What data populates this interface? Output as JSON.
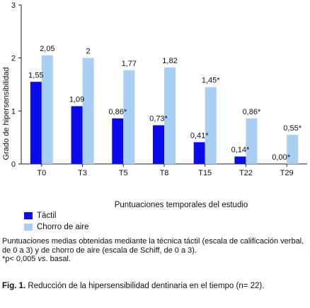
{
  "chart_data": {
    "type": "bar",
    "categories": [
      "T0",
      "T3",
      "T5",
      "T8",
      "T15",
      "T22",
      "T29"
    ],
    "series": [
      {
        "name": "Táctil",
        "color": "#0a0aec",
        "values": [
          1.55,
          1.09,
          0.86,
          0.73,
          0.41,
          0.14,
          0.0
        ],
        "labels": [
          "1,55",
          "1,09",
          "0,86*",
          "0,73*",
          "0,41*",
          "0,14*",
          "0,00*"
        ]
      },
      {
        "name": "Chorro de aire",
        "color": "#a9cff5",
        "values": [
          2.05,
          2.0,
          1.77,
          1.82,
          1.45,
          0.86,
          0.55
        ],
        "labels": [
          "2,05",
          "2",
          "1,77",
          "1,82",
          "1,45*",
          "0,86*",
          "0,55*"
        ]
      }
    ],
    "ylabel": "Grado de hipersensibilidad",
    "xlabel": "Puntuaciones temporales del estudio",
    "ylim": [
      0,
      3
    ],
    "yticks": [
      "0",
      "1",
      "2",
      "3"
    ],
    "grid": false,
    "legend_position": "bottom-left"
  },
  "note": {
    "line1": "Puntuaciones medias obtenidas mediante la técnica táctil (escala de calificación verbal, de 0 a 3) y de chorro de aire (escala de Schiff, de 0 a 3).",
    "line2_prefix": "*p< 0,005 ",
    "line2_vs": "vs",
    "line2_suffix": ". basal."
  },
  "caption": {
    "label": "Fig. 1.",
    "text": " Reducción de la hipersensibilidad dentinaria en el tiempo (n= 22)."
  }
}
